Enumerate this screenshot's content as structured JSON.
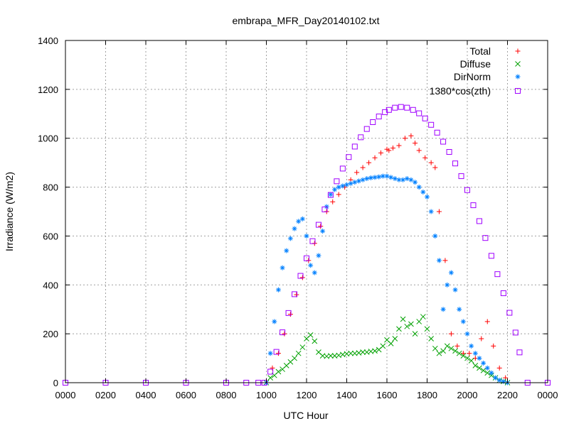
{
  "chart_data": {
    "type": "scatter",
    "title": "embrapa_MFR_Day20140102.txt",
    "xlabel": "UTC Hour",
    "ylabel": "Irradiance (W/m2)",
    "xlim": [
      0,
      24
    ],
    "ylim": [
      0,
      1400
    ],
    "x_tick_labels": [
      "0000",
      "0200",
      "0400",
      "0600",
      "0800",
      "1000",
      "1200",
      "1400",
      "1600",
      "1800",
      "2000",
      "2200",
      "0000"
    ],
    "y_tick_labels": [
      "0",
      "200",
      "400",
      "600",
      "800",
      "1000",
      "1200",
      "1400"
    ],
    "grid": true,
    "legend_position": "top-right",
    "series": [
      {
        "name": "Total",
        "marker": "+",
        "color": "#ff0000",
        "x": [
          10.0,
          10.3,
          10.6,
          10.9,
          11.2,
          11.5,
          11.8,
          12.1,
          12.4,
          12.7,
          13.0,
          13.3,
          13.6,
          13.9,
          14.2,
          14.5,
          14.8,
          15.1,
          15.4,
          15.7,
          16.0,
          16.1,
          16.3,
          16.6,
          16.9,
          17.2,
          17.4,
          17.6,
          17.9,
          18.2,
          18.4,
          18.6,
          18.9,
          19.2,
          19.5,
          19.8,
          20.1,
          20.4,
          20.7,
          21.0,
          21.3,
          21.6,
          21.9
        ],
        "y": [
          0,
          60,
          120,
          200,
          280,
          360,
          430,
          500,
          570,
          640,
          700,
          740,
          770,
          800,
          830,
          860,
          880,
          900,
          920,
          940,
          955,
          950,
          960,
          970,
          1000,
          1010,
          980,
          950,
          920,
          900,
          880,
          700,
          500,
          200,
          150,
          120,
          120,
          100,
          180,
          250,
          150,
          60,
          20
        ]
      },
      {
        "name": "Diffuse",
        "marker": "x",
        "color": "#00a000",
        "x": [
          10.0,
          10.2,
          10.4,
          10.6,
          10.8,
          11.0,
          11.2,
          11.4,
          11.6,
          11.8,
          12.0,
          12.2,
          12.4,
          12.6,
          12.8,
          13.0,
          13.2,
          13.4,
          13.6,
          13.8,
          14.0,
          14.2,
          14.4,
          14.6,
          14.8,
          15.0,
          15.2,
          15.4,
          15.6,
          15.8,
          16.0,
          16.2,
          16.4,
          16.6,
          16.8,
          17.0,
          17.2,
          17.4,
          17.6,
          17.8,
          18.0,
          18.2,
          18.4,
          18.6,
          18.8,
          19.0,
          19.2,
          19.4,
          19.6,
          19.8,
          20.0,
          20.2,
          20.4,
          20.6,
          20.8,
          21.0,
          21.2,
          21.4,
          21.6,
          21.8,
          22.0
        ],
        "y": [
          0,
          20,
          30,
          45,
          55,
          70,
          85,
          100,
          120,
          145,
          180,
          195,
          170,
          125,
          110,
          108,
          110,
          110,
          112,
          115,
          118,
          120,
          120,
          122,
          125,
          125,
          128,
          130,
          135,
          150,
          175,
          160,
          180,
          220,
          260,
          230,
          240,
          200,
          250,
          270,
          220,
          180,
          140,
          120,
          130,
          150,
          140,
          130,
          120,
          110,
          100,
          90,
          70,
          60,
          50,
          40,
          30,
          20,
          10,
          5,
          0
        ]
      },
      {
        "name": "DirNorm",
        "marker": "*",
        "color": "#0080ff",
        "x": [
          10.0,
          10.2,
          10.4,
          10.6,
          10.8,
          11.0,
          11.2,
          11.4,
          11.6,
          11.8,
          12.0,
          12.2,
          12.4,
          12.6,
          12.8,
          13.0,
          13.2,
          13.4,
          13.6,
          13.8,
          14.0,
          14.2,
          14.4,
          14.6,
          14.8,
          15.0,
          15.2,
          15.4,
          15.6,
          15.8,
          16.0,
          16.2,
          16.4,
          16.6,
          16.8,
          17.0,
          17.2,
          17.4,
          17.6,
          17.8,
          18.0,
          18.2,
          18.4,
          18.6,
          18.8,
          19.0,
          19.2,
          19.4,
          19.6,
          19.8,
          20.0,
          20.2,
          20.4,
          20.6,
          20.8,
          21.0,
          21.2,
          21.4,
          21.6,
          21.8,
          22.0
        ],
        "y": [
          0,
          120,
          250,
          380,
          470,
          540,
          590,
          630,
          660,
          670,
          600,
          480,
          450,
          520,
          620,
          720,
          770,
          790,
          800,
          805,
          810,
          815,
          820,
          825,
          830,
          835,
          838,
          840,
          842,
          845,
          845,
          840,
          835,
          830,
          830,
          835,
          830,
          820,
          800,
          780,
          760,
          700,
          600,
          500,
          300,
          400,
          450,
          380,
          300,
          250,
          200,
          150,
          120,
          100,
          80,
          60,
          40,
          20,
          10,
          5,
          0
        ]
      },
      {
        "name": "1380*cos(zth)",
        "marker": "square",
        "color": "#a000ff",
        "x": [
          0,
          2,
          4,
          6,
          8,
          9,
          9.6,
          9.9,
          10.2,
          10.5,
          10.8,
          11.1,
          11.4,
          11.7,
          12.0,
          12.3,
          12.6,
          12.9,
          13.2,
          13.5,
          13.8,
          14.1,
          14.4,
          14.7,
          15.0,
          15.3,
          15.6,
          15.9,
          16.1,
          16.4,
          16.7,
          17.0,
          17.3,
          17.6,
          17.9,
          18.2,
          18.5,
          18.8,
          19.1,
          19.4,
          19.7,
          20.0,
          20.3,
          20.6,
          20.9,
          21.2,
          21.5,
          21.8,
          22.1,
          22.4,
          22.6,
          23,
          24
        ],
        "y": [
          0,
          0,
          0,
          0,
          0,
          0,
          0,
          0,
          45,
          126,
          206,
          285,
          362,
          437,
          509,
          579,
          646,
          709,
          768,
          824,
          876,
          923,
          966,
          1004,
          1038,
          1066,
          1089,
          1107,
          1116,
          1125,
          1128,
          1125,
          1116,
          1102,
          1081,
          1055,
          1023,
          986,
          944,
          897,
          845,
          788,
          726,
          661,
          592,
          519,
          444,
          366,
          286,
          205,
          124,
          0,
          0
        ]
      }
    ]
  }
}
